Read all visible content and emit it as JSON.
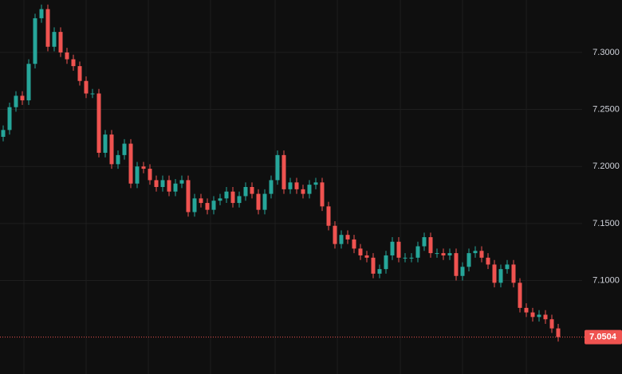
{
  "chart_data": {
    "type": "candlestick",
    "ylim": [
      7.018,
      7.346
    ],
    "yticks": [
      {
        "value": 7.1,
        "label": "7.1000"
      },
      {
        "value": 7.15,
        "label": "7.1500"
      },
      {
        "value": 7.2,
        "label": "7.2000"
      },
      {
        "value": 7.25,
        "label": "7.2500"
      },
      {
        "value": 7.3,
        "label": "7.3000"
      }
    ],
    "grid": true,
    "up_color": "#26a69a",
    "down_color": "#ef5350",
    "last_price": 7.0504,
    "open": [
      7.226,
      7.232,
      7.252,
      7.262,
      7.258,
      7.29,
      7.33,
      7.338,
      7.305,
      7.318,
      7.3,
      7.294,
      7.288,
      7.275,
      7.264,
      7.264,
      7.212,
      7.228,
      7.202,
      7.21,
      7.22,
      7.185,
      7.2,
      7.198,
      7.188,
      7.182,
      7.188,
      7.178,
      7.185,
      7.188,
      7.16,
      7.172,
      7.168,
      7.162,
      7.17,
      7.172,
      7.178,
      7.168,
      7.174,
      7.182,
      7.176,
      7.162,
      7.176,
      7.188,
      7.21,
      7.18,
      7.186,
      7.18,
      7.176,
      7.184,
      7.186,
      7.165,
      7.148,
      7.132,
      7.14,
      7.136,
      7.128,
      7.122,
      7.12,
      7.106,
      7.11,
      7.122,
      7.134,
      7.12,
      7.12,
      7.12,
      7.13,
      7.138,
      7.124,
      7.124,
      7.122,
      7.124,
      7.104,
      7.112,
      7.124,
      7.126,
      7.12,
      7.114,
      7.098,
      7.11,
      7.114,
      7.098,
      7.076,
      7.072,
      7.068,
      7.07,
      7.066,
      7.058
    ],
    "high": [
      7.236,
      7.256,
      7.266,
      7.266,
      7.294,
      7.334,
      7.342,
      7.342,
      7.322,
      7.322,
      7.304,
      7.298,
      7.292,
      7.279,
      7.268,
      7.268,
      7.232,
      7.232,
      7.214,
      7.224,
      7.224,
      7.204,
      7.204,
      7.202,
      7.192,
      7.192,
      7.192,
      7.189,
      7.192,
      7.192,
      7.176,
      7.176,
      7.172,
      7.174,
      7.176,
      7.182,
      7.182,
      7.178,
      7.186,
      7.186,
      7.18,
      7.18,
      7.192,
      7.214,
      7.214,
      7.19,
      7.19,
      7.184,
      7.188,
      7.19,
      7.19,
      7.169,
      7.152,
      7.144,
      7.144,
      7.14,
      7.132,
      7.126,
      7.124,
      7.114,
      7.126,
      7.138,
      7.138,
      7.124,
      7.124,
      7.134,
      7.142,
      7.142,
      7.128,
      7.128,
      7.128,
      7.128,
      7.116,
      7.128,
      7.13,
      7.13,
      7.124,
      7.118,
      7.114,
      7.118,
      7.118,
      7.102,
      7.08,
      7.076,
      7.074,
      7.074,
      7.07,
      7.062
    ],
    "low": [
      7.222,
      7.228,
      7.248,
      7.254,
      7.254,
      7.286,
      7.326,
      7.301,
      7.301,
      7.296,
      7.29,
      7.284,
      7.271,
      7.26,
      7.26,
      7.208,
      7.208,
      7.198,
      7.198,
      7.206,
      7.181,
      7.181,
      7.194,
      7.184,
      7.178,
      7.178,
      7.174,
      7.174,
      7.181,
      7.156,
      7.156,
      7.164,
      7.158,
      7.158,
      7.166,
      7.168,
      7.164,
      7.164,
      7.17,
      7.172,
      7.158,
      7.158,
      7.172,
      7.184,
      7.176,
      7.176,
      7.176,
      7.172,
      7.172,
      7.18,
      7.161,
      7.144,
      7.128,
      7.128,
      7.132,
      7.124,
      7.118,
      7.116,
      7.102,
      7.102,
      7.106,
      7.118,
      7.116,
      7.116,
      7.116,
      7.116,
      7.126,
      7.12,
      7.12,
      7.118,
      7.118,
      7.1,
      7.1,
      7.108,
      7.12,
      7.116,
      7.11,
      7.094,
      7.094,
      7.106,
      7.094,
      7.072,
      7.068,
      7.064,
      7.064,
      7.062,
      7.054,
      7.0464
    ],
    "close": [
      7.232,
      7.252,
      7.262,
      7.258,
      7.29,
      7.33,
      7.338,
      7.305,
      7.318,
      7.3,
      7.294,
      7.288,
      7.275,
      7.264,
      7.264,
      7.212,
      7.228,
      7.202,
      7.21,
      7.22,
      7.185,
      7.2,
      7.198,
      7.188,
      7.182,
      7.188,
      7.178,
      7.185,
      7.188,
      7.16,
      7.172,
      7.168,
      7.162,
      7.17,
      7.172,
      7.178,
      7.168,
      7.174,
      7.182,
      7.176,
      7.162,
      7.176,
      7.188,
      7.21,
      7.18,
      7.186,
      7.18,
      7.176,
      7.184,
      7.186,
      7.165,
      7.148,
      7.132,
      7.14,
      7.136,
      7.128,
      7.122,
      7.12,
      7.106,
      7.11,
      7.122,
      7.134,
      7.12,
      7.12,
      7.12,
      7.13,
      7.138,
      7.124,
      7.124,
      7.122,
      7.124,
      7.104,
      7.112,
      7.124,
      7.126,
      7.12,
      7.114,
      7.098,
      7.11,
      7.114,
      7.098,
      7.076,
      7.072,
      7.068,
      7.07,
      7.066,
      7.058,
      7.0504
    ]
  }
}
